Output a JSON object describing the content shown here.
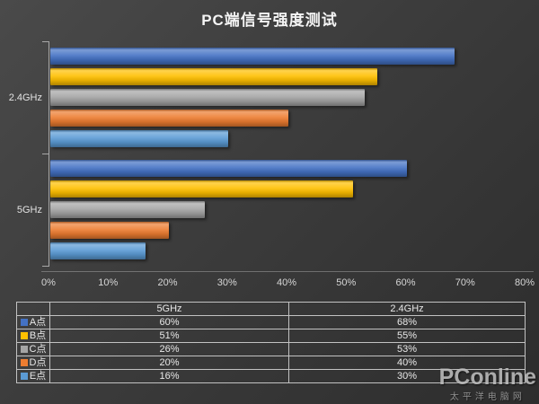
{
  "chart_data": {
    "type": "bar",
    "orientation": "horizontal",
    "title": "PC端信号强度测试",
    "categories": [
      "2.4GHz",
      "5GHz"
    ],
    "series": [
      {
        "name": "A点",
        "color": "#4472C4",
        "values": [
          68,
          60
        ]
      },
      {
        "name": "B点",
        "color": "#FFC000",
        "values": [
          55,
          51
        ]
      },
      {
        "name": "C点",
        "color": "#A5A5A5",
        "values": [
          53,
          26
        ]
      },
      {
        "name": "D点",
        "color": "#ED7D31",
        "values": [
          40,
          20
        ]
      },
      {
        "name": "E点",
        "color": "#5B9BD5",
        "values": [
          30,
          16
        ]
      }
    ],
    "xlim": [
      0,
      80
    ],
    "x_ticks": [
      "0%",
      "10%",
      "20%",
      "30%",
      "40%",
      "50%",
      "60%",
      "70%",
      "80%"
    ],
    "value_suffix": "%",
    "grid": false,
    "legend_position": "data-table"
  },
  "data_table": {
    "columns": [
      "5GHz",
      "2.4GHz"
    ],
    "rows": [
      {
        "label": "A点",
        "values": [
          "60%",
          "68%"
        ]
      },
      {
        "label": "B点",
        "values": [
          "51%",
          "55%"
        ]
      },
      {
        "label": "C点",
        "values": [
          "26%",
          "53%"
        ]
      },
      {
        "label": "D点",
        "values": [
          "20%",
          "40%"
        ]
      },
      {
        "label": "E点",
        "values": [
          "16%",
          "30%"
        ]
      }
    ]
  },
  "watermark": {
    "brand": "PConline",
    "subtext": "太平洋电脑网"
  }
}
